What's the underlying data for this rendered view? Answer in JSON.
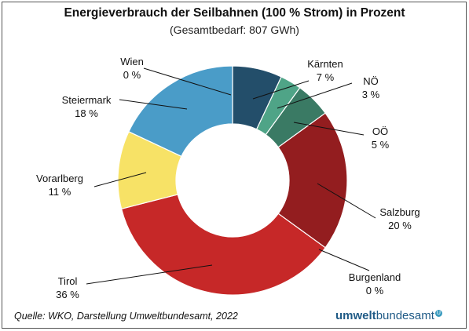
{
  "chart_data": {
    "type": "pie",
    "title": "Energieverbrauch der Seilbahnen (100 % Strom) in Prozent",
    "subtitle": "(Gesamtbedarf: 807 GWh)",
    "slices": [
      {
        "label": "Wien",
        "pct_label": "0 %",
        "value": 0.0,
        "color": "#2e5a78"
      },
      {
        "label": "Kärnten",
        "pct_label": "7 %",
        "value": 7,
        "color": "#234e6a"
      },
      {
        "label": "NÖ",
        "pct_label": "3 %",
        "value": 3,
        "color": "#4fa487"
      },
      {
        "label": "OÖ",
        "pct_label": "5 %",
        "value": 5,
        "color": "#3a7a64"
      },
      {
        "label": "Salzburg",
        "pct_label": "20 %",
        "value": 20,
        "color": "#931d1f"
      },
      {
        "label": "Burgenland",
        "pct_label": "0 %",
        "value": 0.0,
        "color": "#b82424"
      },
      {
        "label": "Tirol",
        "pct_label": "36 %",
        "value": 36,
        "color": "#c62828"
      },
      {
        "label": "Vorarlberg",
        "pct_label": "11 %",
        "value": 11,
        "color": "#f7e266"
      },
      {
        "label": "Steiermark",
        "pct_label": "18 %",
        "value": 18,
        "color": "#4a9cc8"
      }
    ]
  },
  "source": "Quelle: WKO, Darstellung Umweltbundesamt, 2022",
  "logo": {
    "bold": "umwelt",
    "rest": "bundesamt",
    "mark": "U"
  }
}
